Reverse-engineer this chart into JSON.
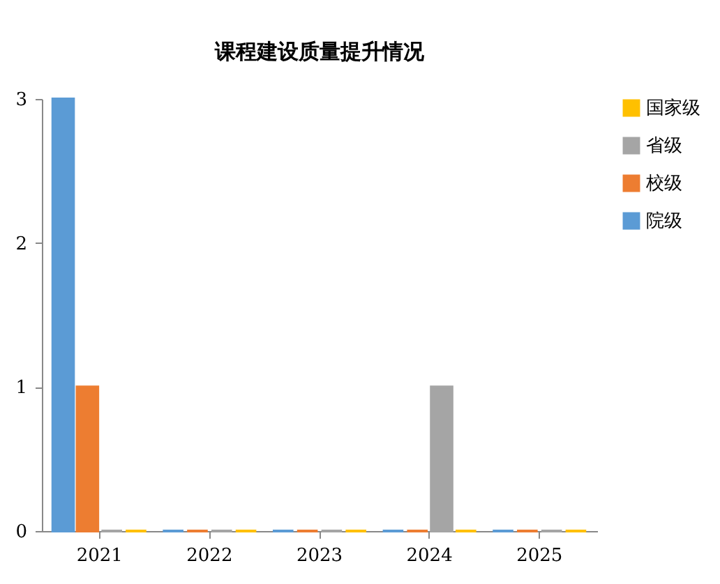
{
  "chart_data": {
    "type": "bar",
    "title": "课程建设质量提升情况",
    "categories": [
      "2021",
      "2022",
      "2023",
      "2024",
      "2025"
    ],
    "series": [
      {
        "name": "院级",
        "color": "#5b9bd5",
        "values": [
          3,
          0,
          0,
          0,
          0
        ]
      },
      {
        "name": "校级",
        "color": "#ed7d31",
        "values": [
          1,
          0,
          0,
          0,
          0
        ]
      },
      {
        "name": "省级",
        "color": "#a5a5a5",
        "values": [
          0,
          0,
          0,
          1,
          0
        ]
      },
      {
        "name": "国家级",
        "color": "#ffc000",
        "values": [
          0,
          0,
          0,
          0,
          0
        ]
      }
    ],
    "ylim": [
      0,
      3
    ],
    "yticks": [
      0,
      1,
      2,
      3
    ],
    "grid": false,
    "legend": "right"
  }
}
